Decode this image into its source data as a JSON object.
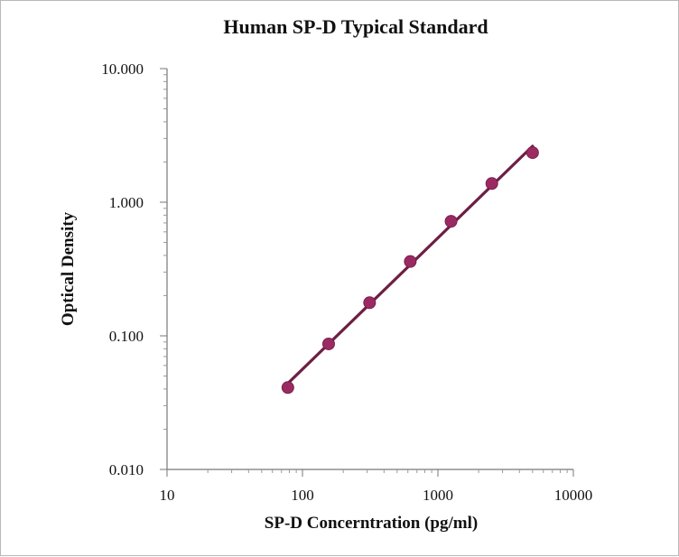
{
  "chart_data": {
    "type": "scatter",
    "title": "Human SP-D Typical Standard",
    "xlabel": "SP-D Concerntration (pg/ml)",
    "ylabel": "Optical Density",
    "x_scale": "log",
    "y_scale": "log",
    "xlim": [
      10,
      10000
    ],
    "ylim": [
      0.01,
      10
    ],
    "x_ticks": [
      10,
      100,
      1000,
      10000
    ],
    "x_tick_labels": [
      "10",
      "100",
      "1000",
      "10000"
    ],
    "y_ticks": [
      0.01,
      0.1,
      1,
      10
    ],
    "y_tick_labels": [
      "0.010",
      "0.100",
      "1.000",
      "10.000"
    ],
    "grid": false,
    "series": [
      {
        "x": [
          78,
          156,
          313,
          625,
          1250,
          2500,
          5000
        ],
        "y": [
          0.041,
          0.087,
          0.177,
          0.36,
          0.72,
          1.38,
          2.35
        ],
        "fit_line": true
      }
    ],
    "colors": {
      "marker": "#9b2a63",
      "line": "#6e1f43"
    }
  }
}
